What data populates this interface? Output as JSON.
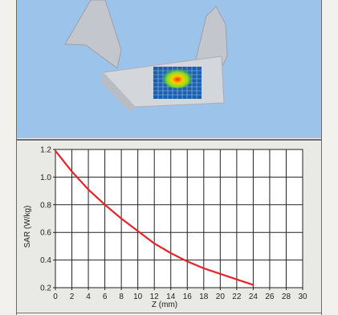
{
  "colors": {
    "scene_background": "#9cc4ea",
    "phantom": "#c8ccd2",
    "measurement_grid": "#1c5fae",
    "curve": "#e8232a",
    "plot_background": "#ffffff",
    "grid": "#222222"
  },
  "scene": {
    "icon": "sar-phantom-3d-view"
  },
  "chart_data": {
    "type": "line",
    "xlabel": "Z (mm)",
    "ylabel": "SAR (W/kg)",
    "xlim": [
      0,
      30
    ],
    "ylim": [
      0.2,
      1.2
    ],
    "x_ticks": [
      "0",
      "2",
      "4",
      "6",
      "8",
      "10",
      "12",
      "14",
      "16",
      "18",
      "20",
      "22",
      "24",
      "26",
      "28",
      "30"
    ],
    "y_ticks": [
      "0.2",
      "0.4",
      "0.6",
      "0.8",
      "1.0",
      "1.2"
    ],
    "grid": true,
    "series": [
      {
        "x": [
          0,
          2,
          4,
          6,
          8,
          10,
          12,
          14,
          16,
          18,
          20,
          22,
          24
        ],
        "y": [
          1.19,
          1.04,
          0.91,
          0.8,
          0.7,
          0.61,
          0.52,
          0.45,
          0.39,
          0.34,
          0.3,
          0.26,
          0.22
        ]
      }
    ]
  }
}
